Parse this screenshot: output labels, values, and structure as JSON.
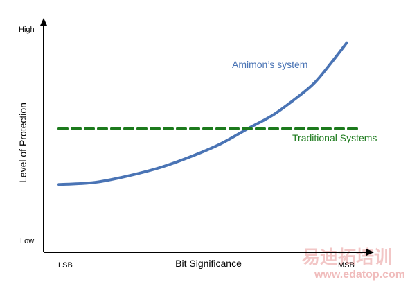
{
  "chart_data": {
    "type": "line",
    "title": "",
    "xlabel": "Bit Significance",
    "ylabel": "Level of Protection",
    "x_tick_labels": {
      "start": "LSB",
      "end": "MSB"
    },
    "y_tick_labels": {
      "top": "High",
      "bottom": "Low"
    },
    "xlim": [
      0,
      1
    ],
    "ylim": [
      0,
      1
    ],
    "grid": false,
    "legend": "none",
    "series": [
      {
        "name": "Amimon’s system",
        "color": "#4a74b5",
        "x": [
          0.0,
          0.12,
          0.23,
          0.34,
          0.44,
          0.54,
          0.63,
          0.71,
          0.78,
          0.85,
          0.91,
          0.96
        ],
        "y": [
          0.27,
          0.28,
          0.31,
          0.35,
          0.4,
          0.46,
          0.53,
          0.59,
          0.66,
          0.74,
          0.84,
          0.93
        ]
      },
      {
        "name": "Traditional Systems",
        "color": "#1c7a1c",
        "style": "dashed",
        "x": [
          0.0,
          1.0
        ],
        "y": [
          0.53,
          0.53
        ]
      }
    ]
  },
  "watermark": {
    "text": "易迪拓培训",
    "url": "www.edatop.com"
  },
  "colors": {
    "axis": "#000000",
    "amimon": "#4a74b5",
    "traditional": "#1c7a1c"
  }
}
